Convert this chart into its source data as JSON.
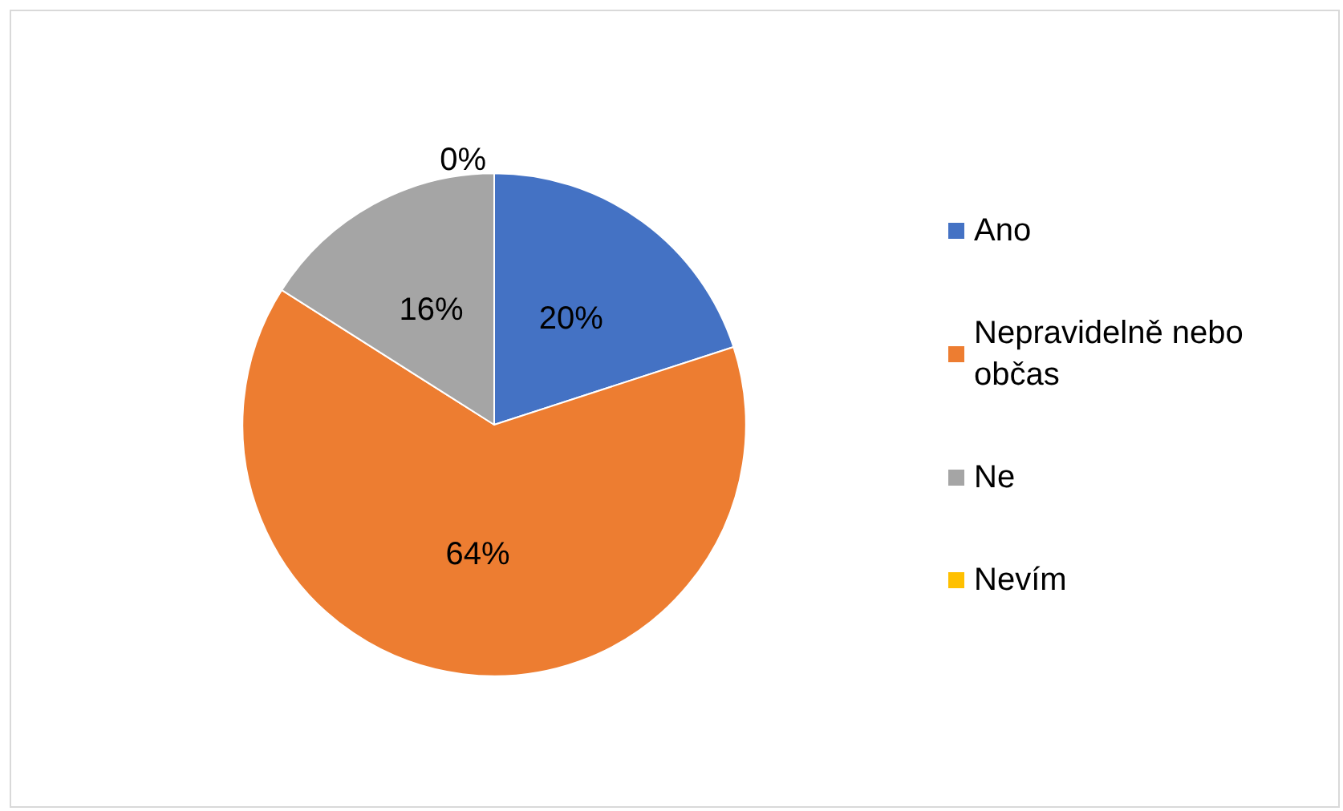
{
  "chart_data": {
    "type": "pie",
    "categories": [
      "Ano",
      "Nepravidelně nebo občas",
      "Ne",
      "Nevím"
    ],
    "values": [
      20,
      64,
      16,
      0
    ],
    "value_labels": [
      "20%",
      "64%",
      "16%",
      "0%"
    ],
    "colors": [
      "#4472c4",
      "#ed7d31",
      "#a5a5a5",
      "#ffc000"
    ],
    "legend": "right"
  }
}
